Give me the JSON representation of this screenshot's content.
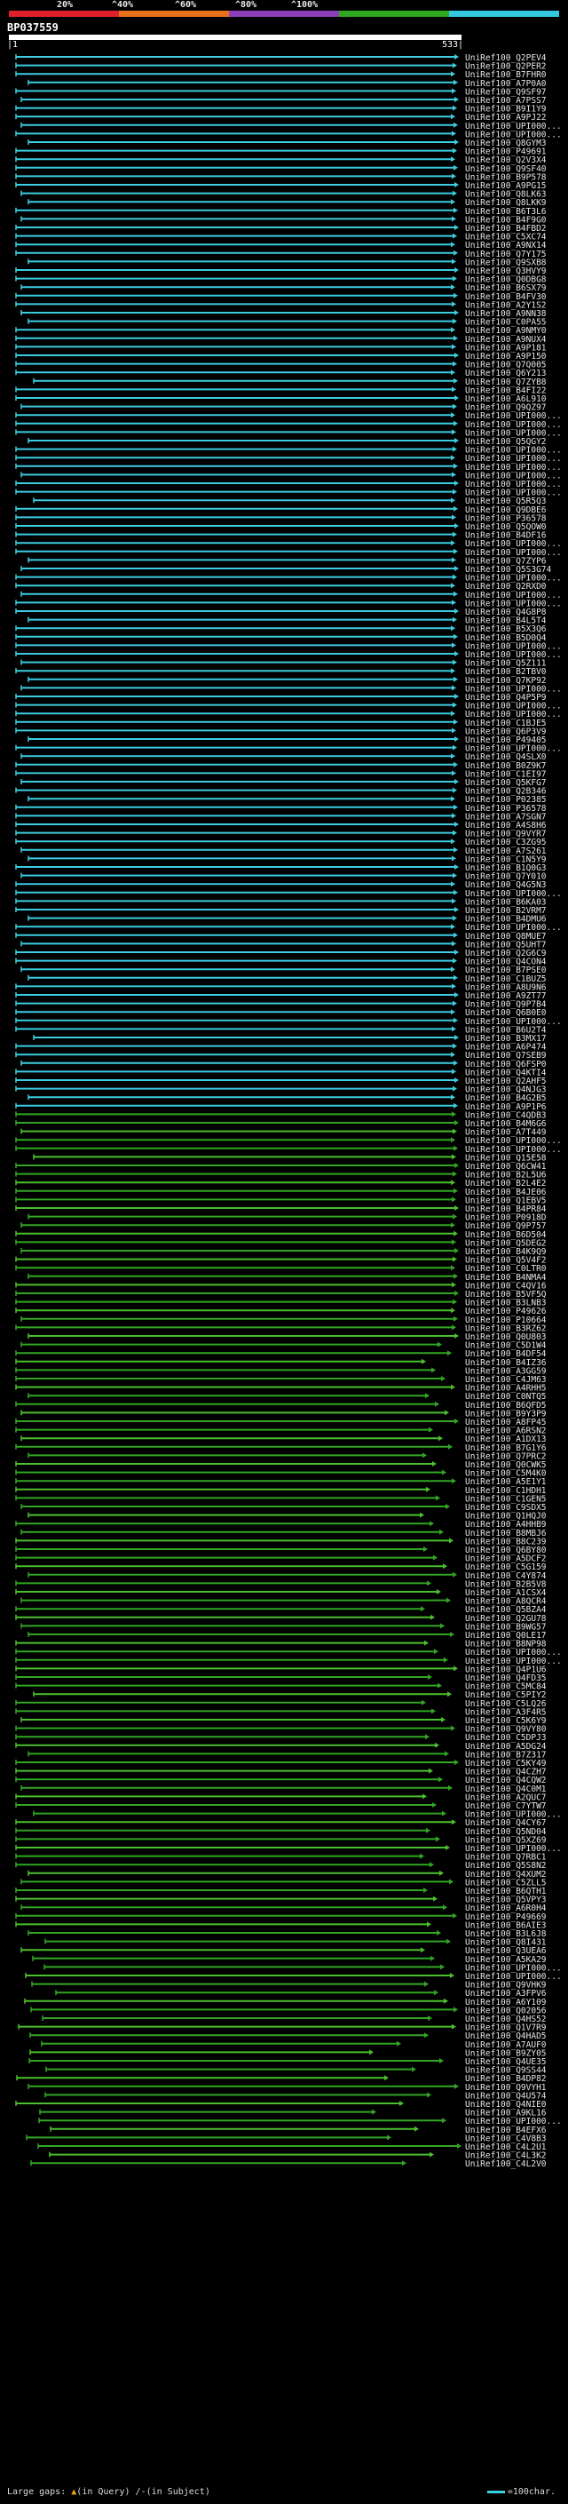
{
  "scale_labels": [
    "20%",
    "^40%",
    "^60%",
    "^80%",
    "^100%"
  ],
  "colors": {
    "background": "#000000",
    "bar_segments": [
      "#e0202a",
      "#e8701a",
      "#8c3fb8",
      "#2fa81f",
      "#33c8de"
    ],
    "hit_cyan": "#3ccde0",
    "hit_green": "#32a624",
    "hit_green_light": "#4cbf2e"
  },
  "query": {
    "id": "BP037559",
    "start_label": "|1",
    "end_label": "533|"
  },
  "hits": [
    "UniRef100_Q2PEV4",
    "UniRef100_Q2PER2",
    "UniRef100_B7FHR0",
    "UniRef100_A7P0A0",
    "UniRef100_Q9SF97",
    "UniRef100_A7PSS7",
    "UniRef100_B9I1Y9",
    "UniRef100_A9PJ22",
    "UniRef100_UPI000...",
    "UniRef100_UPI000...",
    "UniRef100_Q8GYM3",
    "UniRef100_P49691",
    "UniRef100_Q2V3X4",
    "UniRef100_Q9SF40",
    "UniRef100_B9P578",
    "UniRef100_A9PG15",
    "UniRef100_Q8LK63",
    "UniRef100_Q8LKK9",
    "UniRef100_B6T3L6",
    "UniRef100_B4F9G0",
    "UniRef100_B4FBD2",
    "UniRef100_C5XC74",
    "UniRef100_A9NX14",
    "UniRef100_Q7Y175",
    "UniRef100_Q9SXB8",
    "UniRef100_Q3HVY9",
    "UniRef100_Q0DBG8",
    "UniRef100_B6SX79",
    "UniRef100_B4FV30",
    "UniRef100_A2Y1S2",
    "UniRef100_A9NN38",
    "UniRef100_C0PA55",
    "UniRef100_A9NMY0",
    "UniRef100_A9NUX4",
    "UniRef100_A9P181",
    "UniRef100_A9P150",
    "UniRef100_Q7Q005",
    "UniRef100_Q6Y213",
    "UniRef100_Q7ZYB8",
    "UniRef100_B4FI22",
    "UniRef100_A6L910",
    "UniRef100_Q9QZ97",
    "UniRef100_UPI000...",
    "UniRef100_UPI000...",
    "UniRef100_UPI000...",
    "UniRef100_Q5QGY2",
    "UniRef100_UPI000...",
    "UniRef100_UPI000...",
    "UniRef100_UPI000...",
    "UniRef100_UPI000...",
    "UniRef100_UPI000...",
    "UniRef100_UPI000...",
    "UniRef100_Q5R5Q3",
    "UniRef100_Q9DBE6",
    "UniRef100_P36578",
    "UniRef100_Q5QOW0",
    "UniRef100_B4DF16",
    "UniRef100_UPI000...",
    "UniRef100_UPI000...",
    "UniRef100_Q7ZYP6",
    "UniRef100_Q5S3G74",
    "UniRef100_UPI000...",
    "UniRef100_Q2RXD0",
    "UniRef100_UPI000...",
    "UniRef100_UPI000...",
    "UniRef100_Q4G8P8",
    "UniRef100_B4L5T4",
    "UniRef100_B5X3Q6",
    "UniRef100_B5D0Q4",
    "UniRef100_UPI000...",
    "UniRef100_UPI000...",
    "UniRef100_Q5Z111",
    "UniRef100_B2TBV0",
    "UniRef100_Q7KP92",
    "UniRef100_UPI000...",
    "UniRef100_Q4P5P9",
    "UniRef100_UPI000...",
    "UniRef100_UPI000...",
    "UniRef100_C1BJE5",
    "UniRef100_Q6P3V9",
    "UniRef100_P49405",
    "UniRef100_UPI000...",
    "UniRef100_Q4SLX0",
    "UniRef100_B0Z9K7",
    "UniRef100_C1EI97",
    "UniRef100_Q5KFG7",
    "UniRef100_Q2B346",
    "UniRef100_P02385",
    "UniRef100_P36578",
    "UniRef100_A7SGN7",
    "UniRef100_A4S8H6",
    "UniRef100_Q9VYR7",
    "UniRef100_C3ZG95",
    "UniRef100_A7S261",
    "UniRef100_C1N5Y9",
    "UniRef100_B1Q0G3",
    "UniRef100_Q7Y010",
    "UniRef100_Q4G5N3",
    "UniRef100_UPI000...",
    "UniRef100_B6KA03",
    "UniRef100_B2VRM7",
    "UniRef100_B4DMU6",
    "UniRef100_UPI000...",
    "UniRef100_Q8MUE7",
    "UniRef100_Q5UHT7",
    "UniRef100_Q2G6C9",
    "UniRef100_Q4CON4",
    "UniRef100_B7PSE0",
    "UniRef100_C1BUZ5",
    "UniRef100_A8U9N6",
    "UniRef100_A9ZT77",
    "UniRef100_Q9P7B4",
    "UniRef100_Q6B0E0",
    "UniRef100_UPI000...",
    "UniRef100_B6U2T4",
    "UniRef100_B3MX17",
    "UniRef100_A6P474",
    "UniRef100_Q7SEB9",
    "UniRef100_Q6FSP0",
    "UniRef100_Q4KTI4",
    "UniRef100_Q2AHF5",
    "UniRef100_Q4NJG3",
    "UniRef100_B4G2B5",
    "UniRef100_A9P1P6",
    "UniRef100_C4QDB3",
    "UniRef100_B4M6G6",
    "UniRef100_A7T449",
    "UniRef100_UPI000...",
    "UniRef100_UPI000...",
    "UniRef100_Q15E58",
    "UniRef100_Q6CW41",
    "UniRef100_B2L5U6",
    "UniRef100_B2L4E2",
    "UniRef100_B4JE06",
    "UniRef100_Q1EBV5",
    "UniRef100_B4PR84",
    "UniRef100_P0918D",
    "UniRef100_Q9P757",
    "UniRef100_B6D504",
    "UniRef100_Q5DEG2",
    "UniRef100_B4K9Q9",
    "UniRef100_Q5V4F2",
    "UniRef100_C0LTR0",
    "UniRef100_B4NMA4",
    "UniRef100_C4QV16",
    "UniRef100_B5VF5Q",
    "UniRef100_B3LNB3",
    "UniRef100_P49626",
    "UniRef100_P10664",
    "UniRef100_B3RZ62",
    "UniRef100_Q0U803",
    "UniRef100_C5D1W4",
    "UniRef100_B4DF54",
    "UniRef100_B4IZ36",
    "UniRef100_A3GG59",
    "UniRef100_C4JM63",
    "UniRef100_A4RHH5",
    "UniRef100_C0NTQ5",
    "UniRef100_B6QFD5",
    "UniRef100_B9Y3P9",
    "UniRef100_A8FP45",
    "UniRef100_A6RSN2",
    "UniRef100_A1DX13",
    "UniRef100_B7G1Y6",
    "UniRef100_Q7PRC2",
    "UniRef100_Q0CWK5",
    "UniRef100_C5M4K0",
    "UniRef100_A5E1Y1",
    "UniRef100_C1HDH1",
    "UniRef100_C1GEN5",
    "UniRef100_C9SDX5",
    "UniRef100_Q1HQJ0",
    "UniRef100_A4HHB9",
    "UniRef100_B8MBJ6",
    "UniRef100_B8C239",
    "UniRef100_Q6BY80",
    "UniRef100_A5DCF2",
    "UniRef100_C5G159",
    "UniRef100_C4Y874",
    "UniRef100_B2B5V8",
    "UniRef100_A1CSX4",
    "UniRef100_A8QCR4",
    "UniRef100_Q5BZA4",
    "UniRef100_Q2GU78",
    "UniRef100_B9WG57",
    "UniRef100_Q0LE17",
    "UniRef100_B8NP98",
    "UniRef100_UPI000...",
    "UniRef100_UPI000...",
    "UniRef100_Q4P1U6",
    "UniRef100_Q4FD35",
    "UniRef100_C5MC84",
    "UniRef100_C5PIY2",
    "UniRef100_C5LQ26",
    "UniRef100_A3F4R5",
    "UniRef100_C5K6Y9",
    "UniRef100_Q9VY80",
    "UniRef100_C5DPJ3",
    "UniRef100_A5DG24",
    "UniRef100_B7Z317",
    "UniRef100_C5KY49",
    "UniRef100_Q4CZH7",
    "UniRef100_Q4CQW2",
    "UniRef100_Q4C0M1",
    "UniRef100_A2QUC7",
    "UniRef100_C7YTW7",
    "UniRef100_UPI000...",
    "UniRef100_Q4CY67",
    "UniRef100_Q5ND04",
    "UniRef100_Q5XZ69",
    "UniRef100_UPI000...",
    "UniRef100_Q7RBC1",
    "UniRef100_Q5S8N2",
    "UniRef100_Q4XUM2",
    "UniRef100_C5ZLL5",
    "UniRef100_B6QTH1",
    "UniRef100_Q5VPY3",
    "UniRef100_A6R0H4",
    "UniRef100_P49669",
    "UniRef100_B6AIE3",
    "UniRef100_B3L6J8",
    "UniRef100_Q8I431",
    "UniRef100_Q3UEA6",
    "UniRef100_A5KA29",
    "UniRef100_UPI000...",
    "UniRef100_UPI000...",
    "UniRef100_Q9VHK9",
    "UniRef100_A3FPV6",
    "UniRef100_A6Y109",
    "UniRef100_Q02056",
    "UniRef100_Q4HS52",
    "UniRef100_Q1V7R9",
    "UniRef100_Q4HAD5",
    "UniRef100_A7AUF0",
    "UniRef100_B9ZY05",
    "UniRef100_Q4UE35",
    "UniRef100_Q9SS44",
    "UniRef100_B4DP82",
    "UniRef100_Q9VYH1",
    "UniRef100_Q4U574",
    "UniRef100_Q4NIE0",
    "UniRef100_A9KL16",
    "UniRef100_UPI000...",
    "UniRef100_B4EFX6",
    "UniRef100_C4V8B3",
    "UniRef100_C4L2U1",
    "UniRef100_C4L3K2",
    "UniRef100_C4L2V0"
  ],
  "legend": {
    "gaps_label": "Large gaps:",
    "in_query": "(in Query)",
    "in_subject": "/-(in Subject)",
    "scale_label": "=100char."
  }
}
